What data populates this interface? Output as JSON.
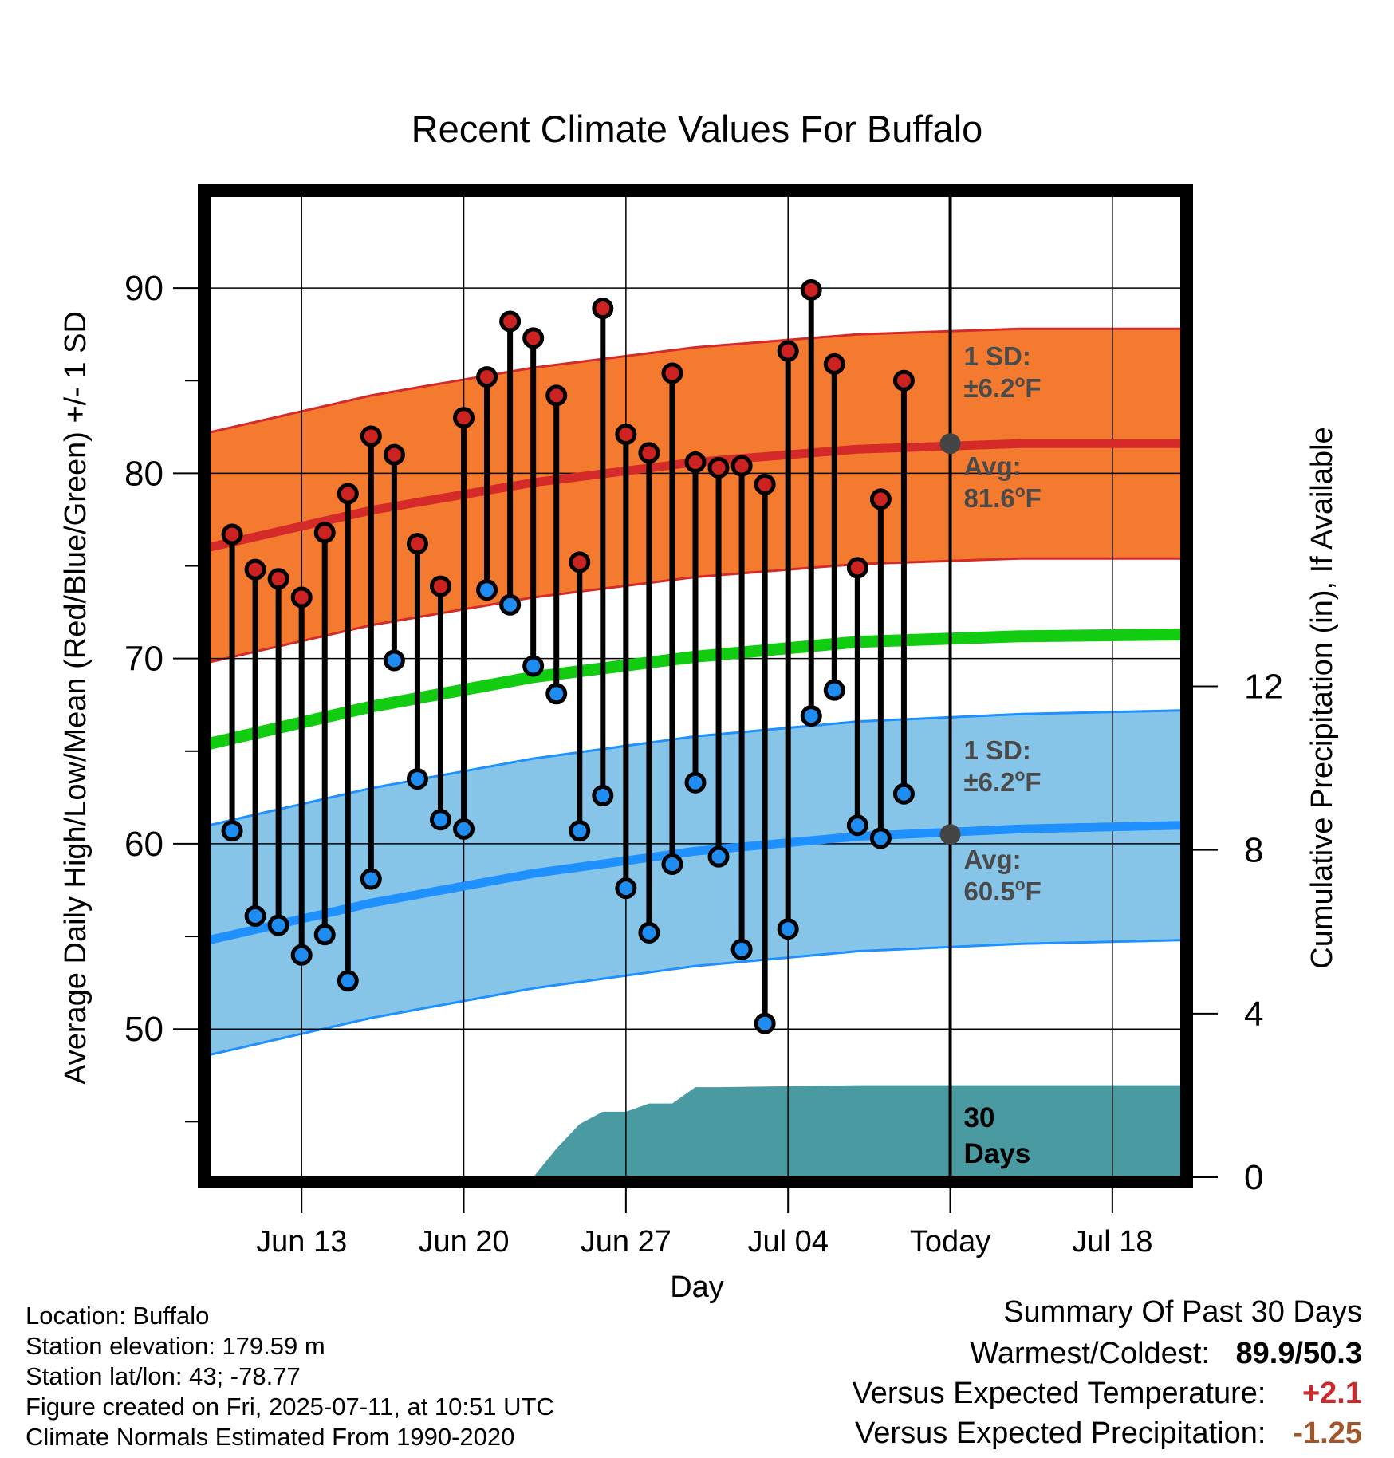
{
  "chart_data": {
    "type": "line",
    "title": "Recent Climate Values For Buffalo",
    "xlabel": "Day",
    "ylabel": "Average Daily High/Low/Mean (Red/Blue/Green) +/- 1 SD",
    "y2label": "Cumulative Precipitation (in), If Available",
    "ylim": [
      42,
      95
    ],
    "y2lim": [
      0,
      24
    ],
    "yticks": [
      50,
      60,
      70,
      80,
      90
    ],
    "y2ticks": [
      0,
      4,
      8,
      12
    ],
    "xlim": [
      "2025-06-09",
      "2025-07-21"
    ],
    "xtick_dates": [
      "2025-06-13",
      "2025-06-20",
      "2025-06-27",
      "2025-07-04",
      "2025-07-11",
      "2025-07-18"
    ],
    "xtick_labels": [
      "Jun 13",
      "Jun 20",
      "Jun 27",
      "Jul 04",
      "Today",
      "Jul 18"
    ],
    "today": "2025-07-11",
    "grid": true,
    "colors": {
      "high_band": "#f37a2f",
      "high_avg": "#d42a2a",
      "low_band": "#86c4e8",
      "low_avg": "#1e90ff",
      "mean": "#12cc12",
      "precip": "#4a9aa2",
      "high_dot": "#cc2222",
      "low_dot": "#1e8cf0"
    },
    "normals": {
      "dates": [
        "2025-06-09",
        "2025-06-16",
        "2025-06-23",
        "2025-06-30",
        "2025-07-07",
        "2025-07-14",
        "2025-07-21"
      ],
      "high_avg": [
        76.0,
        78.0,
        79.5,
        80.6,
        81.3,
        81.6,
        81.6
      ],
      "low_avg": [
        54.8,
        56.8,
        58.4,
        59.6,
        60.4,
        60.8,
        61.0
      ],
      "mean": [
        65.4,
        67.4,
        69.0,
        70.1,
        70.9,
        71.2,
        71.3
      ],
      "sd": 6.2
    },
    "daily": {
      "dates": [
        "2025-06-10",
        "2025-06-11",
        "2025-06-12",
        "2025-06-13",
        "2025-06-14",
        "2025-06-15",
        "2025-06-16",
        "2025-06-17",
        "2025-06-18",
        "2025-06-19",
        "2025-06-20",
        "2025-06-21",
        "2025-06-22",
        "2025-06-23",
        "2025-06-24",
        "2025-06-25",
        "2025-06-26",
        "2025-06-27",
        "2025-06-28",
        "2025-06-29",
        "2025-06-30",
        "2025-07-01",
        "2025-07-02",
        "2025-07-03",
        "2025-07-04",
        "2025-07-05",
        "2025-07-06",
        "2025-07-07",
        "2025-07-08",
        "2025-07-09",
        "2025-07-10"
      ],
      "highs": [
        76.7,
        74.8,
        74.3,
        73.3,
        76.8,
        78.9,
        82.0,
        81.0,
        76.2,
        73.9,
        83.0,
        85.2,
        88.2,
        87.3,
        84.2,
        75.2,
        88.9,
        82.1,
        81.1,
        85.4,
        80.6,
        80.3,
        80.4,
        79.4,
        86.6,
        89.9,
        85.9,
        74.9,
        78.6,
        85.0,
        null
      ],
      "lows": [
        60.7,
        56.1,
        55.6,
        54.0,
        55.1,
        52.6,
        58.1,
        69.9,
        63.5,
        61.3,
        60.8,
        73.7,
        72.9,
        69.6,
        68.1,
        60.7,
        62.6,
        57.6,
        55.2,
        58.9,
        63.3,
        59.3,
        54.3,
        50.3,
        55.4,
        66.9,
        68.3,
        61.0,
        60.3,
        62.7,
        null
      ]
    },
    "precip": {
      "dates": [
        "2025-06-09",
        "2025-06-23",
        "2025-06-24",
        "2025-06-25",
        "2025-06-26",
        "2025-06-27",
        "2025-06-28",
        "2025-06-29",
        "2025-06-30",
        "2025-07-01",
        "2025-07-07",
        "2025-07-21"
      ],
      "values": [
        0,
        0,
        0.7,
        1.3,
        1.6,
        1.6,
        1.8,
        1.8,
        2.2,
        2.2,
        2.25,
        2.25
      ]
    },
    "annotations": {
      "high_sd_label": "1 SD:",
      "high_sd_value": "±6.2",
      "high_avg_label": "Avg:",
      "high_avg_value": "81.6",
      "high_avg_at": 81.6,
      "low_sd_label": "1 SD:",
      "low_sd_value": "±6.2",
      "low_avg_label": "Avg:",
      "low_avg_value": "60.5",
      "low_avg_at": 60.5,
      "degree_suffix": "o",
      "unit": "F",
      "precip_label_1": "30",
      "precip_label_2": "Days"
    }
  },
  "meta": {
    "location": "Location: Buffalo",
    "elevation": "Station elevation: 179.59 m",
    "latlon": "Station lat/lon: 43; -78.77",
    "created": "Figure created on Fri, 2025-07-11, at 10:51 UTC",
    "normals": "Climate Normals Estimated From 1990-2020"
  },
  "summary": {
    "heading": "Summary Of Past 30 Days",
    "warm_cold_label": "Warmest/Coldest:",
    "warm_cold_value": "89.9/50.3",
    "temp_label": "Versus Expected Temperature:",
    "temp_value": "+2.1",
    "temp_color": "#cc2a2a",
    "precip_label": "Versus Expected Precipitation:",
    "precip_value": "-1.25",
    "precip_color": "#a0552a"
  }
}
